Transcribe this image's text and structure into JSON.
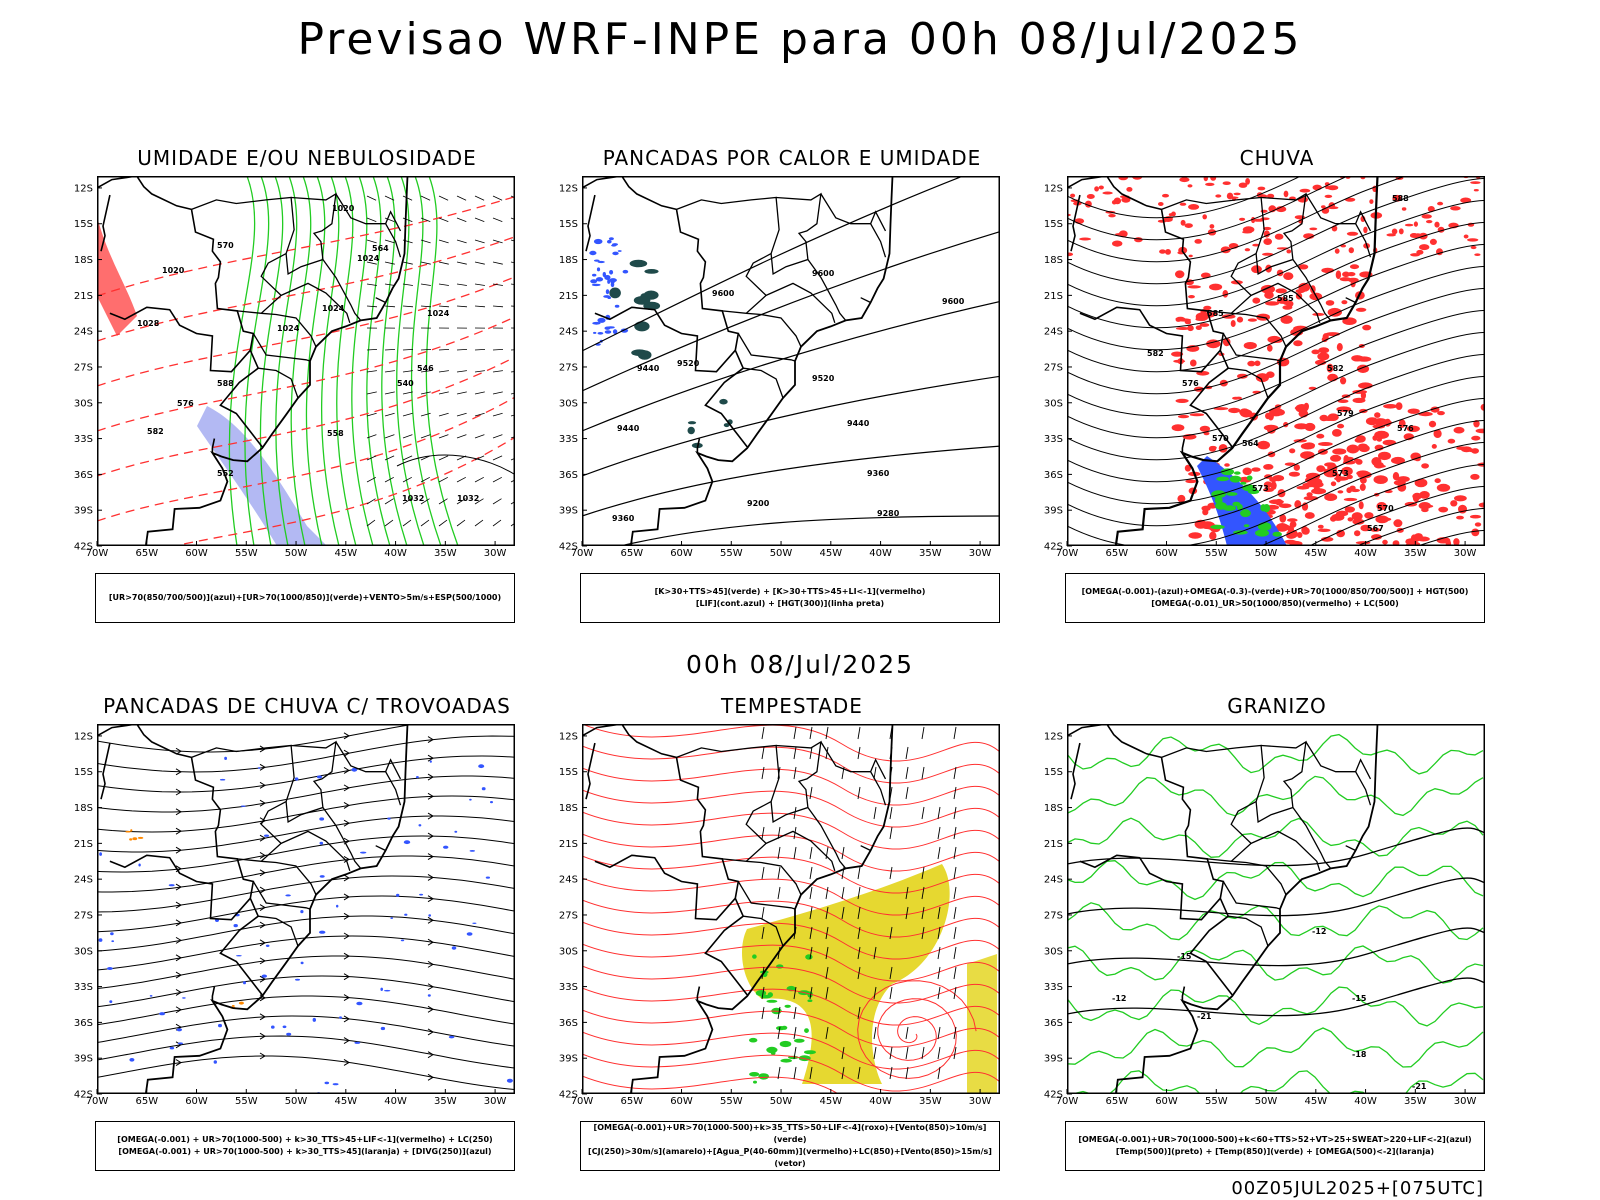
{
  "title": "Previsao WRF-INPE  para 00h 08/Jul/2025",
  "mid_date": "00h 08/Jul/2025",
  "footer": "00Z05JUL2025+[075UTC]",
  "axes": {
    "lat_labels": [
      "12S",
      "15S",
      "18S",
      "21S",
      "24S",
      "27S",
      "30S",
      "33S",
      "36S",
      "39S",
      "42S"
    ],
    "lon_labels": [
      "70W",
      "65W",
      "60W",
      "55W",
      "50W",
      "45W",
      "40W",
      "35W",
      "30W"
    ]
  },
  "panels": [
    {
      "id": "umidade",
      "title": "UMIDADE E/OU NEBULOSIDADE",
      "legend": [
        "[UR>70(850/700/500)](azul)+[UR>70(1000/850)](verde)+VENTO>5m/s+ESP(500/1000)"
      ],
      "contour_labels": [
        "1020",
        "1024",
        "1028",
        "1032",
        "1032",
        "1020",
        "1024",
        "1024",
        "1024",
        "564",
        "570",
        "576",
        "558",
        "552",
        "546",
        "540",
        "582",
        "588"
      ]
    },
    {
      "id": "pancadas-calor",
      "title": "PANCADAS POR CALOR E UMIDADE",
      "legend": [
        "[K>30+TTS>45](verde) + [K>30+TTS>45+LI<-1](vermelho)",
        "[LIF](cont.azul) + [HGT(300)](linha preta)"
      ],
      "contour_labels": [
        "9600",
        "9600",
        "9600",
        "9520",
        "9520",
        "9440",
        "9440",
        "9360",
        "9360",
        "9280",
        "9200",
        "9440"
      ]
    },
    {
      "id": "chuva",
      "title": "CHUVA",
      "legend": [
        "[OMEGA(-0.001)-(azul)+OMEGA(-0.3)-(verde)+UR>70(1000/850/700/500)] + HGT(500)",
        "[OMEGA(-0.01)_UR>50(1000/850)(vermelho) + LC(500)"
      ],
      "contour_labels": [
        "588",
        "585",
        "582",
        "582",
        "579",
        "576",
        "576",
        "573",
        "573",
        "570",
        "567",
        "564",
        "570",
        "585"
      ]
    },
    {
      "id": "pancadas-trovoadas",
      "title": "PANCADAS DE CHUVA C/ TROVOADAS",
      "legend": [
        "[OMEGA(-0.001) + UR>70(1000-500) + k>30_TTS>45+LIF<-1](vermelho) + LC(250)",
        "[OMEGA(-0.001) + UR>70(1000-500) + k>30_TTS>45](laranja) + [DIVG(250)](azul)"
      ],
      "contour_labels": []
    },
    {
      "id": "tempestade",
      "title": "TEMPESTADE",
      "legend": [
        "[OMEGA(-0.001)+UR>70(1000-500)+k>35_TTS>50+LIF<-4](roxo)+[Vento(850)>10m/s](verde)",
        "[CJ(250)>30m/s](amarelo)+[Agua_P(40-60mm)](vermelho)+LC(850)+[Vento(850)>15m/s](vetor)"
      ],
      "contour_labels": []
    },
    {
      "id": "granizo",
      "title": "GRANIZO",
      "legend": [
        "[OMEGA(-0.001)+UR>70(1000-500)+k<60+TTS>52+VT>25+SWEAT>220+LIF<-2](azul)",
        "[Temp(500)](preto) + [Temp(850)](verde) + [OMEGA(500)<-2](laranja)"
      ],
      "contour_labels": [
        "-12",
        "-15",
        "-12",
        "-15",
        "-21",
        "-18",
        "-21"
      ]
    }
  ],
  "colors": {
    "black": "#000000",
    "green": "#22cc22",
    "red": "#ff3030",
    "blue": "#3355ff",
    "lightblue": "#a0a8f0",
    "yellow": "#e6d830",
    "darkteal": "#1f4a4a",
    "orange": "#ff8800"
  }
}
